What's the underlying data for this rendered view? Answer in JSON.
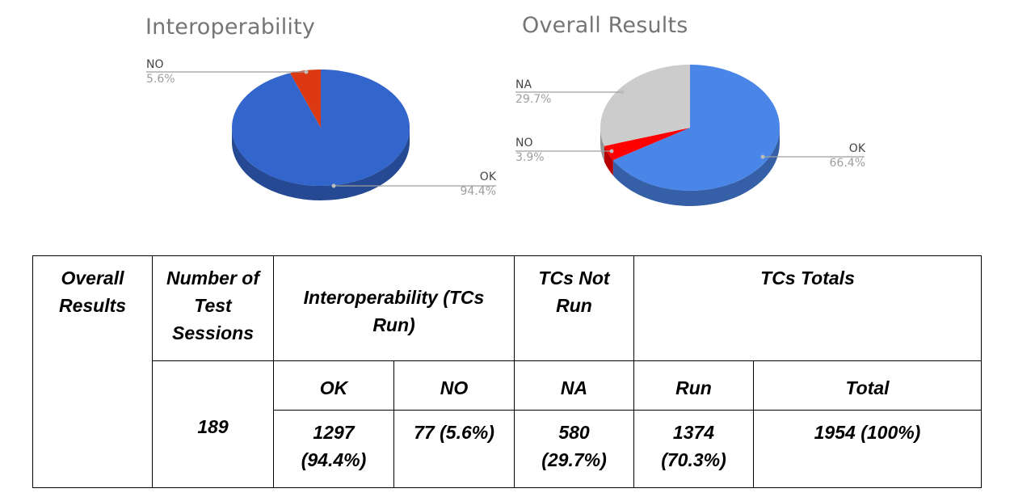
{
  "chart_data": [
    {
      "type": "pie",
      "title": "Interoperability",
      "slices": [
        {
          "label": "OK",
          "value": 94.4,
          "display": "94.4%",
          "color": "#3366cc"
        },
        {
          "label": "NO",
          "value": 5.6,
          "display": "5.6%",
          "color": "#dc3912"
        }
      ]
    },
    {
      "type": "pie",
      "title": "Overall Results",
      "slices": [
        {
          "label": "OK",
          "value": 66.4,
          "display": "66.4%",
          "color": "#4a86e8"
        },
        {
          "label": "NO",
          "value": 3.9,
          "display": "3.9%",
          "color": "#ff0000"
        },
        {
          "label": "NA",
          "value": 29.7,
          "display": "29.7%",
          "color": "#cccccc"
        }
      ]
    }
  ],
  "table": {
    "headers": {
      "overall_results": "Overall Results",
      "sessions": "Number of Test Sessions",
      "interop": "Interoperability (TCs Run)",
      "not_run": "TCs Not Run",
      "totals": "TCs Totals"
    },
    "subheaders": {
      "ok": "OK",
      "no": "NO",
      "na": "NA",
      "run": "Run",
      "total": "Total"
    },
    "values": {
      "sessions": "189",
      "ok": "1297 (94.4%)",
      "no": "77 (5.6%)",
      "na": "580 (29.7%)",
      "run": "1374 (70.3%)",
      "total": "1954 (100%)"
    }
  }
}
